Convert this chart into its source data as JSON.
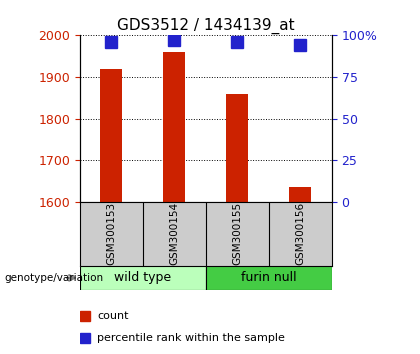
{
  "title": "GDS3512 / 1434139_at",
  "samples": [
    "GSM300153",
    "GSM300154",
    "GSM300155",
    "GSM300156"
  ],
  "count_values": [
    1920,
    1960,
    1860,
    1635
  ],
  "percentile_values": [
    96,
    97,
    96,
    94
  ],
  "count_base": 1600,
  "ylim_left": [
    1600,
    2000
  ],
  "ylim_right": [
    0,
    100
  ],
  "yticks_left": [
    1600,
    1700,
    1800,
    1900,
    2000
  ],
  "yticks_right": [
    0,
    25,
    50,
    75,
    100
  ],
  "ytick_labels_right": [
    "0",
    "25",
    "50",
    "75",
    "100%"
  ],
  "bar_color": "#cc2200",
  "marker_color": "#2222cc",
  "groups": [
    {
      "label": "wild type",
      "indices": [
        0,
        1
      ],
      "color": "#bbffbb"
    },
    {
      "label": "furin null",
      "indices": [
        2,
        3
      ],
      "color": "#44cc44"
    }
  ],
  "group_label": "genotype/variation",
  "legend_count_label": "count",
  "legend_pct_label": "percentile rank within the sample",
  "sample_box_color": "#cccccc",
  "bar_width": 0.35,
  "marker_size": 8
}
